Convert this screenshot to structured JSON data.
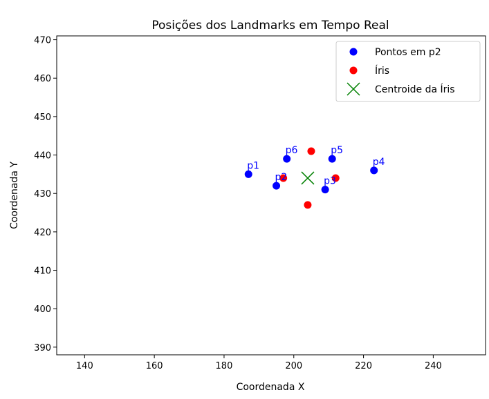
{
  "chart_data": {
    "type": "scatter",
    "title": "Posições dos Landmarks em Tempo Real",
    "xlabel": "Coordenada X",
    "ylabel": "Coordenada Y",
    "xlim": [
      132,
      255
    ],
    "ylim": [
      388,
      471
    ],
    "xticks": [
      140,
      160,
      180,
      200,
      220,
      240
    ],
    "yticks": [
      390,
      400,
      410,
      420,
      430,
      440,
      450,
      460,
      470
    ],
    "grid": false,
    "legend_position": "top-right",
    "series": [
      {
        "name": "Pontos em p2",
        "marker": "circle",
        "color": "#0000ff",
        "points": [
          {
            "label": "p1",
            "x": 187,
            "y": 435
          },
          {
            "label": "p2",
            "x": 195,
            "y": 432
          },
          {
            "label": "p3",
            "x": 209,
            "y": 431
          },
          {
            "label": "p4",
            "x": 223,
            "y": 436
          },
          {
            "label": "p5",
            "x": 211,
            "y": 439
          },
          {
            "label": "p6",
            "x": 198,
            "y": 439
          }
        ]
      },
      {
        "name": "Íris",
        "marker": "circle",
        "color": "#ff0000",
        "points": [
          {
            "x": 205,
            "y": 441
          },
          {
            "x": 197,
            "y": 434
          },
          {
            "x": 212,
            "y": 434
          },
          {
            "x": 204,
            "y": 427
          }
        ]
      },
      {
        "name": "Centroide da Íris",
        "marker": "x",
        "color": "#008000",
        "points": [
          {
            "x": 204,
            "y": 434
          }
        ]
      }
    ]
  }
}
